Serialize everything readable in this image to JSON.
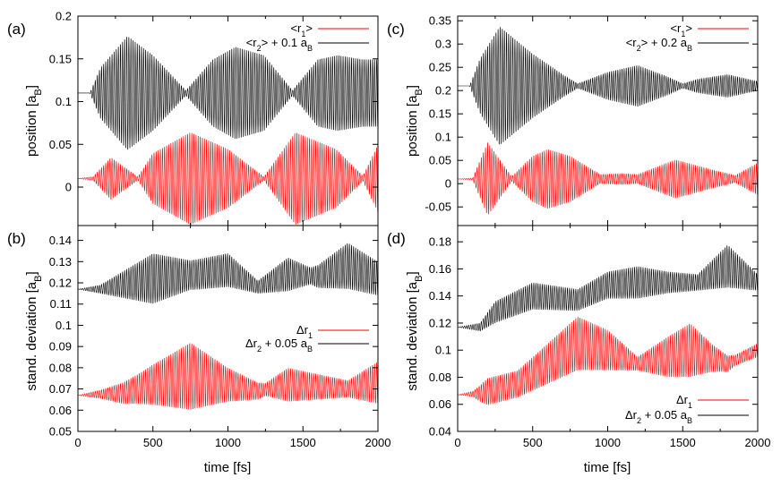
{
  "chart_data": [
    {
      "type": "line",
      "panel_label": "(a)",
      "title": "",
      "xlabel": "",
      "ylabel_main": "position [a",
      "ylabel_sub": "B",
      "ylabel_end": "]",
      "xlim": [
        0,
        2000
      ],
      "ylim": [
        -0.045,
        0.2
      ],
      "yticks": [
        0,
        0.05,
        0.1,
        0.15,
        0.2
      ],
      "ytick_labels": [
        "0",
        "0.05",
        "0.1",
        "0.15",
        "0.2"
      ],
      "legend_position": "top-right",
      "series": [
        {
          "name": "<r1>",
          "label_main": "<r",
          "label_sub": "1",
          "label_sup": "",
          "label_end": ">",
          "color": "#ff0000",
          "baseline": 0.01,
          "period_fs": 14,
          "envelope_fs": [
            0,
            100,
            220,
            400,
            500,
            750,
            1000,
            1240,
            1450,
            1720,
            1900,
            2000
          ],
          "envelope_amp": [
            0.0,
            0.002,
            0.025,
            0.002,
            0.03,
            0.055,
            0.035,
            0.002,
            0.055,
            0.035,
            0.003,
            0.04
          ]
        },
        {
          "name": "<r2> + 0.1 aB",
          "label_main": "<r",
          "label_sub": "2",
          "label_sup": "",
          "label_end": "> + 0.1 a",
          "label_sub2": "B",
          "color": "#000000",
          "baseline": 0.11,
          "period_fs": 14,
          "envelope_fs": [
            0,
            80,
            150,
            330,
            500,
            720,
            900,
            1050,
            1240,
            1430,
            1600,
            1730,
            1900,
            2000
          ],
          "envelope_amp": [
            0.0,
            0.0,
            0.03,
            0.068,
            0.045,
            0.003,
            0.04,
            0.055,
            0.045,
            0.003,
            0.04,
            0.045,
            0.04,
            0.04
          ]
        }
      ]
    },
    {
      "type": "line",
      "panel_label": "(b)",
      "title": "",
      "xlabel": "time [fs]",
      "ylabel_main": "stand. deviation [a",
      "ylabel_sub": "B",
      "ylabel_end": "]",
      "xlim": [
        0,
        2000
      ],
      "ylim": [
        0.05,
        0.147
      ],
      "yticks": [
        0.05,
        0.06,
        0.07,
        0.08,
        0.09,
        0.1,
        0.11,
        0.12,
        0.13,
        0.14
      ],
      "ytick_labels": [
        "0.05",
        "0.06",
        "0.07",
        "0.08",
        "0.09",
        "0.1",
        "0.11",
        "0.12",
        "0.13",
        "0.14"
      ],
      "xticks": [
        0,
        500,
        1000,
        1500,
        2000
      ],
      "xtick_labels": [
        "0",
        "500",
        "1000",
        "1500",
        "2000"
      ],
      "legend_position": "center-right",
      "series": [
        {
          "name": "Δr1",
          "label_main": "Δr",
          "label_sub": "1",
          "label_end": "",
          "color": "#ff0000",
          "baseline_fs": [
            0,
            300,
            500,
            750,
            1000,
            1200,
            1400,
            1600,
            1800,
            2000
          ],
          "baseline_vals": [
            0.067,
            0.068,
            0.072,
            0.076,
            0.072,
            0.069,
            0.072,
            0.071,
            0.07,
            0.073
          ],
          "period_fs": 14,
          "envelope_fs": [
            0,
            150,
            400,
            750,
            1000,
            1250,
            1400,
            1600,
            1800,
            2000
          ],
          "envelope_amp": [
            0.0,
            0.002,
            0.007,
            0.016,
            0.008,
            0.003,
            0.008,
            0.006,
            0.004,
            0.01
          ]
        },
        {
          "name": "Δr2 + 0.05 aB",
          "label_main": "Δr",
          "label_sub": "2",
          "label_end": " + 0.05 a",
          "label_sub2": "B",
          "color": "#000000",
          "baseline_fs": [
            0,
            150,
            500,
            800,
            1000,
            1200,
            1400,
            1600,
            1800,
            2000
          ],
          "baseline_vals": [
            0.117,
            0.117,
            0.122,
            0.124,
            0.126,
            0.118,
            0.124,
            0.123,
            0.128,
            0.122
          ],
          "period_fs": 14,
          "envelope_fs": [
            0,
            150,
            500,
            750,
            1000,
            1200,
            1400,
            1550,
            1800,
            2000
          ],
          "envelope_amp": [
            0.0,
            0.002,
            0.012,
            0.007,
            0.008,
            0.003,
            0.008,
            0.004,
            0.011,
            0.008
          ]
        }
      ]
    },
    {
      "type": "line",
      "panel_label": "(c)",
      "title": "",
      "xlabel": "",
      "ylabel_main": "position [a",
      "ylabel_sub": "B",
      "ylabel_end": "]",
      "xlim": [
        0,
        2000
      ],
      "ylim": [
        -0.09,
        0.36
      ],
      "yticks": [
        -0.05,
        0,
        0.05,
        0.1,
        0.15,
        0.2,
        0.25,
        0.3,
        0.35
      ],
      "ytick_labels": [
        "-0.05",
        "0",
        "0.05",
        "0.1",
        "0.15",
        "0.2",
        "0.25",
        "0.3",
        "0.35"
      ],
      "legend_position": "top-right",
      "series": [
        {
          "name": "<r1>",
          "label_main": "<r",
          "label_sub": "1",
          "label_end": ">",
          "color": "#ff0000",
          "baseline": 0.01,
          "period_fs": 14,
          "envelope_fs": [
            0,
            100,
            200,
            360,
            500,
            600,
            750,
            950,
            1100,
            1200,
            1450,
            1700,
            1850,
            2000
          ],
          "envelope_amp": [
            0.0,
            0.002,
            0.08,
            0.005,
            0.05,
            0.065,
            0.05,
            0.01,
            0.012,
            0.01,
            0.042,
            0.02,
            0.008,
            0.035
          ]
        },
        {
          "name": "<r2> + 0.2 aB",
          "label_main": "<r",
          "label_sub": "2",
          "label_end": "> + 0.2 a",
          "label_sub2": "B",
          "color": "#000000",
          "baseline": 0.21,
          "period_fs": 14,
          "envelope_fs": [
            0,
            80,
            150,
            280,
            500,
            700,
            800,
            1000,
            1200,
            1400,
            1500,
            1600,
            1800,
            2000
          ],
          "envelope_amp": [
            0.0,
            0.0,
            0.06,
            0.13,
            0.07,
            0.025,
            0.005,
            0.03,
            0.045,
            0.02,
            0.005,
            0.015,
            0.025,
            0.01
          ]
        }
      ]
    },
    {
      "type": "line",
      "panel_label": "(d)",
      "title": "",
      "xlabel": "time [fs]",
      "ylabel_main": "stand. deviation [a",
      "ylabel_sub": "B",
      "ylabel_end": "]",
      "xlim": [
        0,
        2000
      ],
      "ylim": [
        0.04,
        0.192
      ],
      "yticks": [
        0.04,
        0.06,
        0.08,
        0.1,
        0.12,
        0.14,
        0.16,
        0.18
      ],
      "ytick_labels": [
        "0.04",
        "0.06",
        "0.08",
        "0.1",
        "0.12",
        "0.14",
        "0.16",
        "0.18"
      ],
      "xticks": [
        0,
        500,
        1000,
        1500,
        2000
      ],
      "xtick_labels": [
        "0",
        "500",
        "1000",
        "1500",
        "2000"
      ],
      "legend_position": "bottom-right",
      "series": [
        {
          "name": "Δr1",
          "label_main": "Δr",
          "label_sub": "1",
          "label_end": "",
          "color": "#ff0000",
          "baseline_fs": [
            0,
            150,
            400,
            600,
            800,
            1000,
            1200,
            1400,
            1550,
            1800,
            2000
          ],
          "baseline_vals": [
            0.067,
            0.068,
            0.075,
            0.09,
            0.105,
            0.1,
            0.09,
            0.095,
            0.1,
            0.09,
            0.1
          ],
          "period_fs": 14,
          "envelope_fs": [
            0,
            100,
            200,
            400,
            600,
            800,
            1000,
            1200,
            1400,
            1550,
            1700,
            1850,
            2000
          ],
          "envelope_amp": [
            0.0,
            0.002,
            0.01,
            0.01,
            0.015,
            0.02,
            0.015,
            0.005,
            0.015,
            0.02,
            0.01,
            0.004,
            0.005
          ]
        },
        {
          "name": "Δr2 + 0.05 aB",
          "label_main": "Δr",
          "label_sub": "2",
          "label_end": " + 0.05 a",
          "label_sub2": "B",
          "color": "#000000",
          "baseline_fs": [
            0,
            150,
            250,
            500,
            800,
            1000,
            1200,
            1400,
            1600,
            1800,
            2000
          ],
          "baseline_vals": [
            0.117,
            0.117,
            0.128,
            0.14,
            0.137,
            0.148,
            0.15,
            0.15,
            0.15,
            0.162,
            0.15
          ],
          "period_fs": 14,
          "envelope_fs": [
            0,
            150,
            250,
            500,
            800,
            1000,
            1200,
            1400,
            1600,
            1800,
            2000
          ],
          "envelope_amp": [
            0.0,
            0.003,
            0.008,
            0.01,
            0.008,
            0.01,
            0.012,
            0.008,
            0.006,
            0.016,
            0.006
          ]
        }
      ]
    }
  ]
}
